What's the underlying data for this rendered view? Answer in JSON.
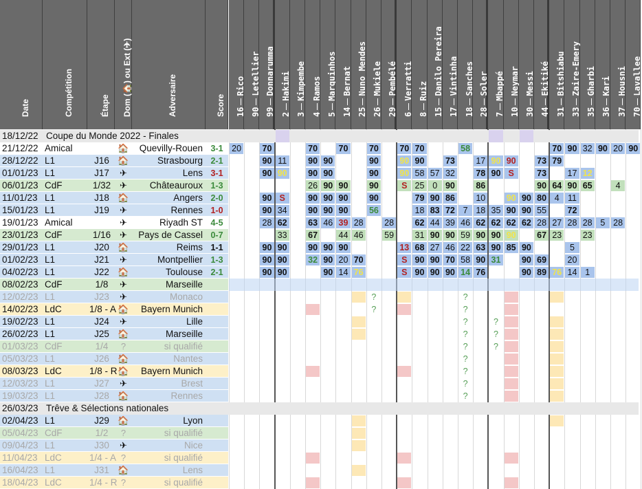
{
  "headers": {
    "info": [
      "Date",
      "Compétition",
      "Étape",
      "Dom (🏠) ou Ext (✈)",
      "Adversaire",
      "Score"
    ],
    "players": [
      {
        "num": "16",
        "name": "Rico"
      },
      {
        "num": "90",
        "name": "Letellier"
      },
      {
        "num": "99",
        "name": "Donnarumma"
      },
      {
        "num": "2",
        "name": "Hakimi"
      },
      {
        "num": "3",
        "name": "Kimpembe"
      },
      {
        "num": "4",
        "name": "Ramos"
      },
      {
        "num": "5",
        "name": "Marquinhos"
      },
      {
        "num": "14",
        "name": "Bernat"
      },
      {
        "num": "25",
        "name": "Nuno Mendes"
      },
      {
        "num": "26",
        "name": "Mukiele"
      },
      {
        "num": "29",
        "name": "Pembélé"
      },
      {
        "num": "6",
        "name": "Verratti"
      },
      {
        "num": "8",
        "name": "Ruiz"
      },
      {
        "num": "15",
        "name": "Danilo Pereira"
      },
      {
        "num": "17",
        "name": "Vintinha"
      },
      {
        "num": "18",
        "name": "Sanches"
      },
      {
        "num": "28",
        "name": "Soler"
      },
      {
        "num": "7",
        "name": "Mbappé"
      },
      {
        "num": "10",
        "name": "Neymar"
      },
      {
        "num": "30",
        "name": "Messi"
      },
      {
        "num": "44",
        "name": "Ekitiké"
      },
      {
        "num": "31",
        "name": "Bitshiabu"
      },
      {
        "num": "33",
        "name": "Zaire-Emery"
      },
      {
        "num": "35",
        "name": "Gharbi"
      },
      {
        "num": "36",
        "name": "Kari"
      },
      {
        "num": "37",
        "name": "Housni"
      },
      {
        "num": "70",
        "name": "Lavallee"
      }
    ]
  },
  "colors": {
    "header_bg": "#6a6a6a",
    "l1": "#cfe0f3",
    "cdf": "#d6ead0",
    "ldc": "#fdf0c8",
    "section": "#e8e8e8",
    "played": "#a9c4ec",
    "played_alt": "#bcd4f2",
    "cdf_played": "#c2e0bc",
    "green_num": "#3b8a3b",
    "red_num": "#b22222",
    "yellow_num": "#f1e44a",
    "question": "#58a058",
    "injury": "#f4c7c7",
    "suspension": "#fde8b6",
    "purple": "#d9d2ee"
  },
  "icons": {
    "home": "house-icon",
    "away": "airplane-icon"
  },
  "rows": [
    {
      "type": "section",
      "date": "18/12/22",
      "title": "Coupe du Monde 2022 - Finales",
      "purple": [
        3,
        17,
        19
      ]
    },
    {
      "type": "match",
      "date": "21/12/22",
      "comp": "Amical",
      "stage": "",
      "venue": "home",
      "opp": "Quevilly-Rouen",
      "score": "3-1",
      "result": "win",
      "bg": "white",
      "cells": {
        "0": "20",
        "2": "70",
        "5": "70",
        "7": "70",
        "9": "70",
        "11": "70",
        "12": "70",
        "15": "58g",
        "21": "70",
        "22": "90",
        "23": "32",
        "24": "90",
        "25": "20",
        "26": "90"
      }
    },
    {
      "type": "match",
      "date": "28/12/22",
      "comp": "L1",
      "stage": "J16",
      "venue": "home",
      "opp": "Strasbourg",
      "score": "2-1",
      "result": "win",
      "bg": "l1",
      "cells": {
        "2": "90",
        "3": "11",
        "5": "90",
        "6": "90",
        "9": "90",
        "11": "90y",
        "12": "90",
        "14": "73",
        "16": "17",
        "17": "90y",
        "18": "90r",
        "20": "73",
        "21": "79"
      }
    },
    {
      "type": "match",
      "date": "01/01/23",
      "comp": "L1",
      "stage": "J17",
      "venue": "away",
      "opp": "Lens",
      "score": "3-1",
      "result": "loss",
      "bg": "l1",
      "cells": {
        "2": "90",
        "3": "90y",
        "5": "90",
        "6": "90",
        "9": "90",
        "11": "90y",
        "12": "58",
        "13": "57",
        "14": "32",
        "16": "78",
        "17": "90",
        "18": "S",
        "20": "73",
        "22": "17",
        "23": "12y"
      }
    },
    {
      "type": "match",
      "date": "06/01/23",
      "comp": "CdF",
      "stage": "1/32",
      "venue": "away",
      "opp": "Châteauroux",
      "score": "1-3",
      "result": "win",
      "bg": "cdf",
      "cells": {
        "5": "26",
        "6": "90",
        "7": "90",
        "9": "90",
        "11": "S",
        "12": "25",
        "13": "0",
        "14": "90",
        "16": "86",
        "20": "90",
        "21": "64",
        "22": "90",
        "23": "65",
        "25": "4"
      }
    },
    {
      "type": "match",
      "date": "11/01/23",
      "comp": "L1",
      "stage": "J18",
      "venue": "home",
      "opp": "Angers",
      "score": "2-0",
      "result": "win",
      "bg": "l1",
      "cells": {
        "2": "90",
        "3": "S",
        "5": "90",
        "6": "90",
        "7": "90",
        "9": "90",
        "12": "79",
        "13": "90",
        "14": "86",
        "16": "10",
        "18": "90y",
        "19": "90",
        "20": "80",
        "21": "4",
        "22": "11"
      }
    },
    {
      "type": "match",
      "date": "15/01/23",
      "comp": "L1",
      "stage": "J19",
      "venue": "away",
      "opp": "Rennes",
      "score": "1-0",
      "result": "loss",
      "bg": "l1",
      "cells": {
        "2": "90",
        "3": "34",
        "5": "90",
        "6": "90",
        "7": "90",
        "9": "56g",
        "12": "18",
        "13": "83",
        "14": "72",
        "15": "7",
        "16": "18",
        "17": "35",
        "18": "90",
        "19": "90",
        "20": "55",
        "22": "72"
      }
    },
    {
      "type": "match",
      "date": "19/01/23",
      "comp": "Amical",
      "stage": "",
      "venue": "away",
      "opp": "Riyadh ST",
      "score": "4-5",
      "result": "win",
      "bg": "white",
      "cells": {
        "2": "28",
        "3": "62",
        "5": "63",
        "6": "46",
        "7": "39r",
        "8": "28",
        "10": "28",
        "12": "62",
        "13": "44",
        "14": "39",
        "15": "46",
        "16": "62",
        "17": "62",
        "18": "62",
        "19": "62",
        "20": "28",
        "21": "27",
        "22": "28",
        "23": "28",
        "24": "5",
        "25": "28"
      }
    },
    {
      "type": "match",
      "date": "23/01/23",
      "comp": "CdF",
      "stage": "1/16",
      "venue": "away",
      "opp": "Pays de Cassel",
      "score": "0-7",
      "result": "win",
      "bg": "cdf",
      "cells": {
        "3": "33",
        "5": "67",
        "7": "44",
        "8": "46",
        "10": "59",
        "12": "31",
        "13": "90",
        "14": "90",
        "15": "59",
        "16": "90",
        "17": "90",
        "18": "90y",
        "20": "67",
        "21": "23",
        "23": "23"
      }
    },
    {
      "type": "match",
      "date": "29/01/23",
      "comp": "L1",
      "stage": "J20",
      "venue": "home",
      "opp": "Reims",
      "score": "1-1",
      "result": "draw",
      "bg": "l1",
      "cells": {
        "2": "90",
        "3": "90",
        "5": "90",
        "6": "90",
        "7": "90",
        "11": "13r",
        "12": "68",
        "13": "27",
        "14": "46",
        "15": "22",
        "16": "63",
        "17": "90",
        "18": "85",
        "19": "90",
        "22": "5"
      }
    },
    {
      "type": "match",
      "date": "01/02/23",
      "comp": "L1",
      "stage": "J21",
      "venue": "away",
      "opp": "Montpellier",
      "score": "1-3",
      "result": "win",
      "bg": "l1",
      "cells": {
        "2": "90",
        "3": "90",
        "5": "32g",
        "6": "90",
        "7": "20",
        "8": "70",
        "11": "S",
        "12": "90",
        "13": "90",
        "14": "70",
        "15": "58",
        "16": "90",
        "17": "31g",
        "19": "90",
        "20": "69",
        "22": "20"
      }
    },
    {
      "type": "match",
      "date": "04/02/23",
      "comp": "L1",
      "stage": "J22",
      "venue": "home",
      "opp": "Toulouse",
      "score": "2-1",
      "result": "win",
      "bg": "l1",
      "cells": {
        "2": "90",
        "3": "90",
        "6": "90",
        "7": "14",
        "8": "76y",
        "11": "S",
        "12": "90",
        "13": "90",
        "14": "90",
        "15": "14g",
        "16": "76",
        "19": "90",
        "20": "89",
        "21": "76y",
        "22": "14",
        "23": "1"
      }
    },
    {
      "type": "match",
      "date": "08/02/23",
      "comp": "CdF",
      "stage": "1/8",
      "venue": "away",
      "opp": "Marseille",
      "score": "",
      "result": "",
      "bg": "cdf",
      "cells": {}
    },
    {
      "type": "future",
      "date": "12/02/23",
      "comp": "L1",
      "stage": "J23",
      "venue": "away",
      "opp": "Monaco",
      "bg": "l1",
      "dim": true,
      "marks": {
        "8": "s",
        "9": "?",
        "11": "s",
        "15": "?",
        "18": "i",
        "21": "s"
      }
    },
    {
      "type": "future",
      "date": "14/02/23",
      "comp": "LdC",
      "stage": "1/8 - A",
      "venue": "home",
      "opp": "Bayern Munich",
      "bg": "ldc",
      "dim": false,
      "marks": {
        "5": "i",
        "9": "?",
        "11": "i",
        "15": "?",
        "18": "i"
      }
    },
    {
      "type": "future",
      "date": "19/02/23",
      "comp": "L1",
      "stage": "J24",
      "venue": "away",
      "opp": "Lille",
      "bg": "l1",
      "dim": false,
      "marks": {
        "8": "s",
        "15": "?",
        "17": "?",
        "18": "i",
        "21": "s"
      }
    },
    {
      "type": "future",
      "date": "26/02/23",
      "comp": "L1",
      "stage": "J25",
      "venue": "home",
      "opp": "Marseille",
      "bg": "l1",
      "dim": false,
      "marks": {
        "8": "s",
        "15": "?",
        "17": "?",
        "18": "i",
        "21": "s"
      }
    },
    {
      "type": "future",
      "date": "01/03/23",
      "comp": "CdF",
      "stage": "1/4",
      "venue": "?",
      "opp": "si qualifié",
      "bg": "cdf",
      "dim": true,
      "marks": {
        "15": "?",
        "17": "?",
        "18": "i",
        "21": "s"
      }
    },
    {
      "type": "future",
      "date": "05/03/23",
      "comp": "L1",
      "stage": "J26",
      "venue": "home",
      "opp": "Nantes",
      "bg": "l1",
      "dim": true,
      "marks": {
        "15": "?",
        "18": "i",
        "21": "s"
      }
    },
    {
      "type": "future",
      "date": "08/03/23",
      "comp": "LdC",
      "stage": "1/8 - R",
      "venue": "home",
      "opp": "Bayern Munich",
      "bg": "ldc",
      "dim": false,
      "marks": {
        "5": "i",
        "11": "i",
        "15": "?",
        "18": "i",
        "21": "s"
      }
    },
    {
      "type": "future",
      "date": "12/03/23",
      "comp": "L1",
      "stage": "J27",
      "venue": "away",
      "opp": "Brest",
      "bg": "l1",
      "dim": true,
      "marks": {
        "15": "?",
        "18": "i",
        "21": "s"
      }
    },
    {
      "type": "future",
      "date": "19/03/23",
      "comp": "L1",
      "stage": "J28",
      "venue": "home",
      "opp": "Rennes",
      "bg": "l1",
      "dim": true,
      "marks": {
        "15": "?",
        "18": "i",
        "21": "s"
      }
    },
    {
      "type": "section",
      "date": "26/03/23",
      "title": "Trêve & Sélections nationales",
      "purple": []
    },
    {
      "type": "future",
      "date": "02/04/23",
      "comp": "L1",
      "stage": "J29",
      "venue": "home",
      "opp": "Lyon",
      "bg": "l1",
      "dim": false,
      "marks": {
        "8": "s",
        "21": "s"
      }
    },
    {
      "type": "future",
      "date": "05/04/23",
      "comp": "CdF",
      "stage": "1/2",
      "venue": "?",
      "opp": "si qualifié",
      "bg": "cdf",
      "dim": true,
      "marks": {
        "8": "s"
      }
    },
    {
      "type": "future",
      "date": "09/04/23",
      "comp": "L1",
      "stage": "J30",
      "venue": "away",
      "opp": "Nice",
      "bg": "l1",
      "dim": true,
      "marks": {
        "8": "s"
      }
    },
    {
      "type": "future",
      "date": "11/04/23",
      "comp": "LdC",
      "stage": "1/4 - A",
      "venue": "?",
      "opp": "si qualifié",
      "bg": "ldc",
      "dim": true,
      "marks": {
        "5": "i",
        "11": "i",
        "18": "i"
      }
    },
    {
      "type": "future",
      "date": "16/04/23",
      "comp": "L1",
      "stage": "J31",
      "venue": "home",
      "opp": "Lens",
      "bg": "l1",
      "dim": true,
      "marks": {
        "8": "s"
      }
    },
    {
      "type": "future",
      "date": "18/04/23",
      "comp": "LdC",
      "stage": "1/4 - R",
      "venue": "?",
      "opp": "si qualifié",
      "bg": "ldc",
      "dim": true,
      "marks": {
        "5": "i",
        "11": "i",
        "18": "i"
      }
    }
  ]
}
